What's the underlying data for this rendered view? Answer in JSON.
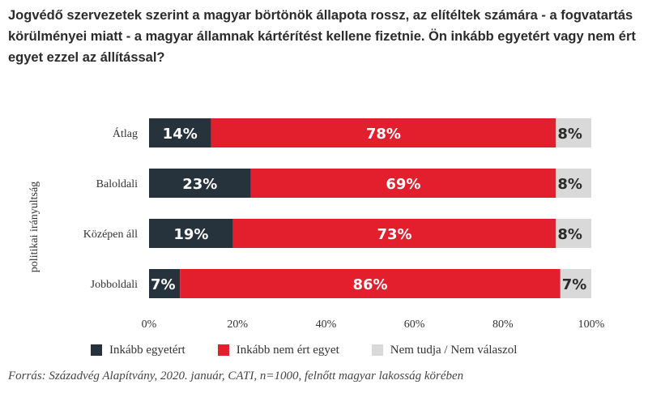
{
  "title": "Jogvédő szervezetek szerint a magyar börtönök állapota rossz, az elítéltek számára - a fogvatartás körülményei miatt - a magyar államnak kártérítést kellene fizetnie. Ön inkább egyetért vagy nem ért egyet ezzel az állítással?",
  "source": "Forrás: Századvég Alapítvány, 2020. január, CATI, n=1000, felnőtt magyar lakosság körében",
  "chart_data": {
    "type": "bar",
    "orientation": "horizontal",
    "stacked": true,
    "title": "Jogvédő szervezetek szerint a magyar börtönök állapota rossz, az elítéltek számára - a fogvatartás körülményei miatt - a magyar államnak kártérítést kellene fizetnie. Ön inkább egyetért vagy nem ért egyet ezzel az állítással?",
    "ylabel": "politikai irányultság",
    "xlabel": "",
    "categories": [
      "Átlag",
      "Baloldali",
      "Középen áll",
      "Jobboldali"
    ],
    "series": [
      {
        "name": "Inkább egyetért",
        "color": "#26333d",
        "label_color": "#ffffff",
        "values": [
          14,
          23,
          19,
          7
        ]
      },
      {
        "name": "Inkább nem ért egyet",
        "color": "#e31e2d",
        "label_color": "#ffffff",
        "values": [
          78,
          69,
          73,
          86
        ]
      },
      {
        "name": "Nem tudja / Nem válaszol",
        "color": "#d9d9d9",
        "label_color": "#2b2b2b",
        "values": [
          8,
          8,
          8,
          7
        ]
      }
    ],
    "xlim": [
      0,
      100
    ],
    "xticks": [
      "0%",
      "20%",
      "40%",
      "60%",
      "80%",
      "100%"
    ],
    "value_suffix": "%",
    "legend_position": "bottom",
    "grid": false
  }
}
